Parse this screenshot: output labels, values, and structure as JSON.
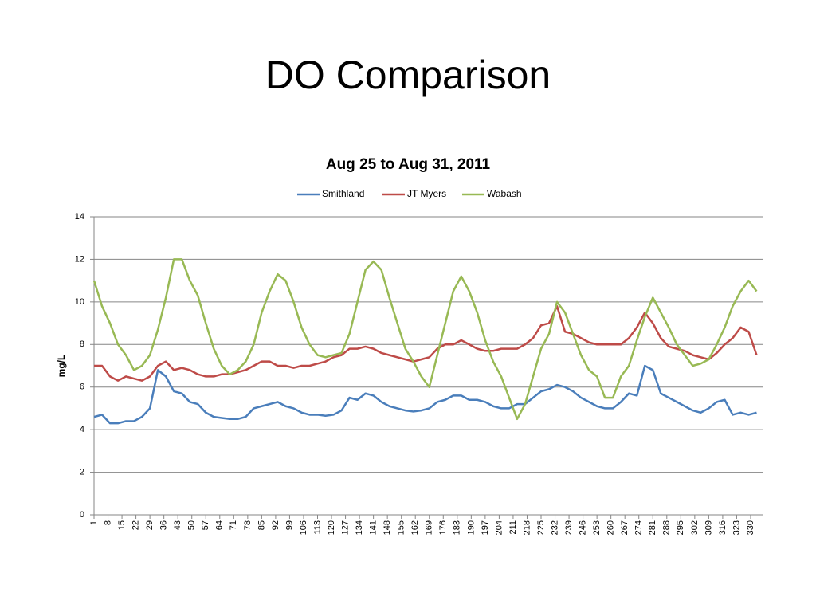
{
  "slide_title": "DO Comparison",
  "chart_data": {
    "type": "line",
    "title": "Aug 25 to Aug 31, 2011",
    "y_label": "mg/L",
    "x": [
      1,
      5,
      9,
      13,
      17,
      21,
      25,
      29,
      33,
      37,
      41,
      45,
      49,
      53,
      57,
      61,
      65,
      69,
      73,
      77,
      81,
      85,
      89,
      93,
      97,
      101,
      105,
      109,
      113,
      117,
      121,
      125,
      129,
      133,
      137,
      141,
      145,
      149,
      153,
      157,
      161,
      165,
      169,
      173,
      177,
      181,
      185,
      189,
      193,
      197,
      201,
      205,
      209,
      213,
      217,
      221,
      225,
      229,
      233,
      237,
      241,
      245,
      249,
      253,
      257,
      261,
      265,
      269,
      273,
      277,
      281,
      285,
      289,
      293,
      297,
      301,
      305,
      309,
      313,
      317,
      321,
      325,
      329,
      333
    ],
    "xlim": [
      1,
      336
    ],
    "xticks": [
      1,
      8,
      15,
      22,
      29,
      36,
      43,
      50,
      57,
      64,
      71,
      78,
      85,
      92,
      99,
      106,
      113,
      120,
      127,
      134,
      141,
      148,
      155,
      162,
      169,
      176,
      183,
      190,
      197,
      204,
      211,
      218,
      225,
      232,
      239,
      246,
      253,
      260,
      267,
      274,
      281,
      288,
      295,
      302,
      309,
      316,
      323,
      330
    ],
    "ylim": [
      0,
      14
    ],
    "yticks": [
      0,
      2,
      4,
      6,
      8,
      10,
      12,
      14
    ],
    "grid": true,
    "legend": "top",
    "series": [
      {
        "name": "Smithland",
        "color": "#4a7ebb",
        "values": [
          4.6,
          4.7,
          4.3,
          4.3,
          4.4,
          4.4,
          4.6,
          5.0,
          6.8,
          6.5,
          5.8,
          5.7,
          5.3,
          5.2,
          4.8,
          4.6,
          4.55,
          4.5,
          4.5,
          4.6,
          5.0,
          5.1,
          5.2,
          5.3,
          5.1,
          5.0,
          4.8,
          4.7,
          4.7,
          4.65,
          4.7,
          4.9,
          5.5,
          5.4,
          5.7,
          5.6,
          5.3,
          5.1,
          5.0,
          4.9,
          4.85,
          4.9,
          5.0,
          5.3,
          5.4,
          5.6,
          5.6,
          5.4,
          5.4,
          5.3,
          5.1,
          5.0,
          5.0,
          5.2,
          5.2,
          5.5,
          5.8,
          5.9,
          6.1,
          6.0,
          5.8,
          5.5,
          5.3,
          5.1,
          5.0,
          5.0,
          5.3,
          5.7,
          5.6,
          7.0,
          6.8,
          5.7,
          5.5,
          5.3,
          5.1,
          4.9,
          4.8,
          5.0,
          5.3,
          5.4,
          4.7,
          4.8,
          4.7,
          4.8
        ]
      },
      {
        "name": "JT Myers",
        "color": "#be4b48",
        "values": [
          7.0,
          7.0,
          6.5,
          6.3,
          6.5,
          6.4,
          6.3,
          6.5,
          7.0,
          7.2,
          6.8,
          6.9,
          6.8,
          6.6,
          6.5,
          6.5,
          6.6,
          6.6,
          6.7,
          6.8,
          7.0,
          7.2,
          7.2,
          7.0,
          7.0,
          6.9,
          7.0,
          7.0,
          7.1,
          7.2,
          7.4,
          7.5,
          7.8,
          7.8,
          7.9,
          7.8,
          7.6,
          7.5,
          7.4,
          7.3,
          7.2,
          7.3,
          7.4,
          7.8,
          8.0,
          8.0,
          8.2,
          8.0,
          7.8,
          7.7,
          7.7,
          7.8,
          7.8,
          7.8,
          8.0,
          8.3,
          8.9,
          9.0,
          9.8,
          8.6,
          8.5,
          8.3,
          8.1,
          8.0,
          8.0,
          8.0,
          8.0,
          8.3,
          8.8,
          9.5,
          9.0,
          8.3,
          7.9,
          7.8,
          7.7,
          7.5,
          7.4,
          7.3,
          7.6,
          8.0,
          8.3,
          8.8,
          8.6,
          7.5
        ]
      },
      {
        "name": "Wabash",
        "color": "#98b954",
        "values": [
          11.0,
          9.8,
          9.0,
          8.0,
          7.5,
          6.8,
          7.0,
          7.5,
          8.7,
          10.2,
          12.0,
          12.0,
          11.0,
          10.3,
          9.0,
          7.8,
          7.0,
          6.6,
          6.8,
          7.2,
          8.0,
          9.5,
          10.5,
          11.3,
          11.0,
          10.0,
          8.8,
          8.0,
          7.5,
          7.4,
          7.5,
          7.6,
          8.5,
          10.0,
          11.5,
          11.9,
          11.5,
          10.2,
          9.0,
          7.8,
          7.2,
          6.5,
          6.0,
          7.5,
          9.0,
          10.5,
          11.2,
          10.5,
          9.5,
          8.2,
          7.2,
          6.5,
          5.5,
          4.5,
          5.2,
          6.5,
          7.8,
          8.5,
          10.0,
          9.5,
          8.5,
          7.5,
          6.8,
          6.5,
          5.5,
          5.5,
          6.5,
          7.0,
          8.2,
          9.3,
          10.2,
          9.5,
          8.8,
          8.0,
          7.5,
          7.0,
          7.1,
          7.3,
          8.0,
          8.8,
          9.8,
          10.5,
          11.0,
          10.5
        ]
      }
    ]
  }
}
